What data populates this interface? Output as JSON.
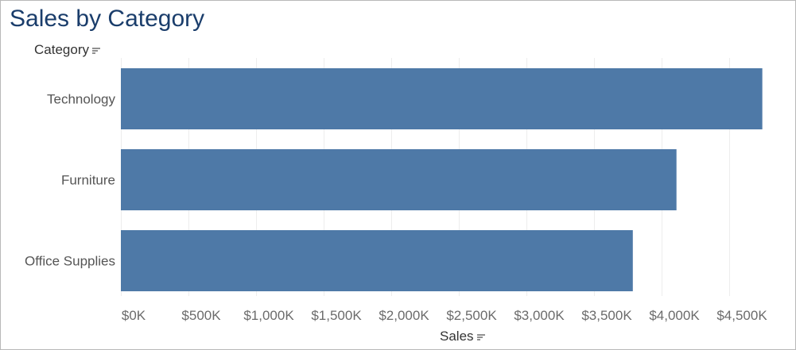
{
  "title": "Sales by Category",
  "row_header": "Category",
  "chart_data": {
    "type": "bar",
    "orientation": "horizontal",
    "title": "Sales by Category",
    "ylabel": "Category",
    "xlabel": "Sales",
    "categories": [
      "Technology",
      "Furniture",
      "Office Supplies"
    ],
    "values": [
      4745000,
      4110000,
      3787000
    ],
    "xlim": [
      0,
      4900000
    ],
    "xticks": [
      0,
      500000,
      1000000,
      1500000,
      2000000,
      2500000,
      3000000,
      3500000,
      4000000,
      4500000
    ],
    "xtick_labels": [
      "$0K",
      "$500K",
      "$1,000K",
      "$1,500K",
      "$2,000K",
      "$2,500K",
      "$3,000K",
      "$3,500K",
      "$4,000K",
      "$4,500K"
    ],
    "grid": true,
    "legend": "none",
    "bar_color": "#4e79a7"
  },
  "colors": {
    "title": "#1a3d6b",
    "bar": "#4e79a7"
  },
  "icons": {
    "sort": "sort-descending-icon"
  }
}
